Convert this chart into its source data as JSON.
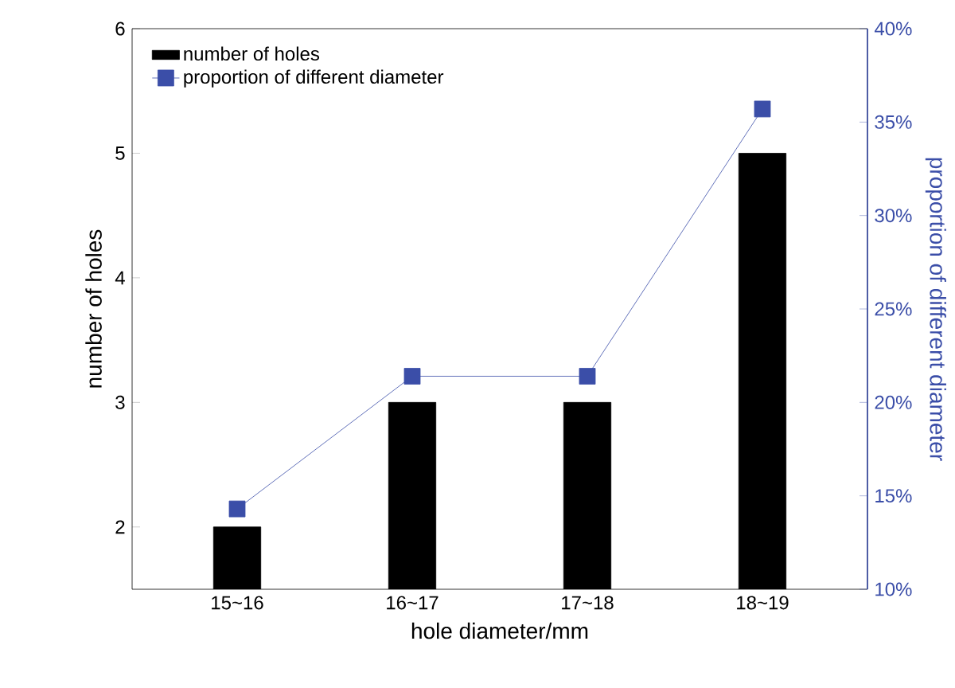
{
  "chart_data": {
    "type": "bar",
    "categories": [
      "15~16",
      "16~17",
      "17~18",
      "18~19"
    ],
    "series": [
      {
        "name": "number of holes",
        "color": "#000000",
        "values": [
          2,
          3,
          3,
          5
        ]
      },
      {
        "name": "proportion of different diameter",
        "color": "#3b4ea8",
        "values": [
          14.3,
          21.4,
          21.4,
          35.7
        ],
        "type": "line",
        "axis": "y2"
      }
    ],
    "xlabel": "hole diameter/mm",
    "ylabel": "number of holes",
    "y2label": "proportion of different diameter",
    "ylim": [
      1.5,
      6
    ],
    "yticks": [
      2,
      3,
      4,
      5,
      6
    ],
    "y2lim": [
      10,
      40
    ],
    "y2ticks": [
      {
        "value": 10,
        "label": "10%"
      },
      {
        "value": 15,
        "label": "15%"
      },
      {
        "value": 20,
        "label": "20%"
      },
      {
        "value": 25,
        "label": "25%"
      },
      {
        "value": 30,
        "label": "30%"
      },
      {
        "value": 35,
        "label": "35%"
      },
      {
        "value": 40,
        "label": "40%"
      }
    ],
    "legend": "top left",
    "marker": "square",
    "line_style": "solid"
  }
}
